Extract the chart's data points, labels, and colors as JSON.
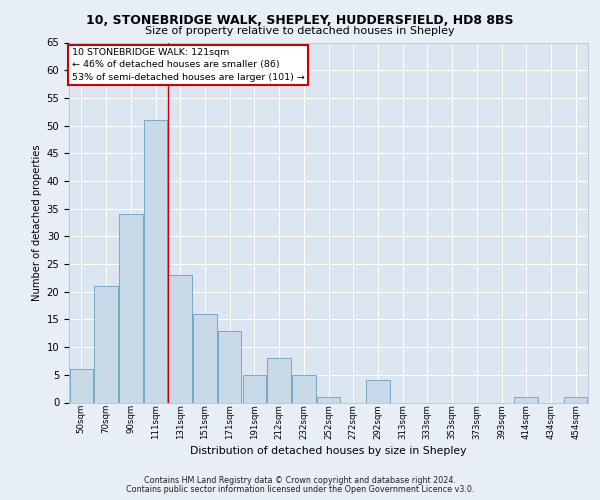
{
  "title1": "10, STONEBRIDGE WALK, SHEPLEY, HUDDERSFIELD, HD8 8BS",
  "title2": "Size of property relative to detached houses in Shepley",
  "xlabel": "Distribution of detached houses by size in Shepley",
  "ylabel": "Number of detached properties",
  "categories": [
    "50sqm",
    "70sqm",
    "90sqm",
    "111sqm",
    "131sqm",
    "151sqm",
    "171sqm",
    "191sqm",
    "212sqm",
    "232sqm",
    "252sqm",
    "272sqm",
    "292sqm",
    "313sqm",
    "333sqm",
    "353sqm",
    "373sqm",
    "393sqm",
    "414sqm",
    "434sqm",
    "454sqm"
  ],
  "values": [
    6,
    21,
    34,
    51,
    23,
    16,
    13,
    5,
    8,
    5,
    1,
    0,
    4,
    0,
    0,
    0,
    0,
    0,
    1,
    0,
    1
  ],
  "bar_color": "#c8d9e8",
  "bar_edgecolor": "#6a9fc0",
  "vline_index": 3.5,
  "annotation_line1": "10 STONEBRIDGE WALK: 121sqm",
  "annotation_line2": "← 46% of detached houses are smaller (86)",
  "annotation_line3": "53% of semi-detached houses are larger (101) →",
  "vline_color": "#cc0000",
  "ylim": [
    0,
    65
  ],
  "yticks": [
    0,
    5,
    10,
    15,
    20,
    25,
    30,
    35,
    40,
    45,
    50,
    55,
    60,
    65
  ],
  "background_color": "#e8eef5",
  "plot_background": "#dce6f0",
  "footer1": "Contains HM Land Registry data © Crown copyright and database right 2024.",
  "footer2": "Contains public sector information licensed under the Open Government Licence v3.0."
}
